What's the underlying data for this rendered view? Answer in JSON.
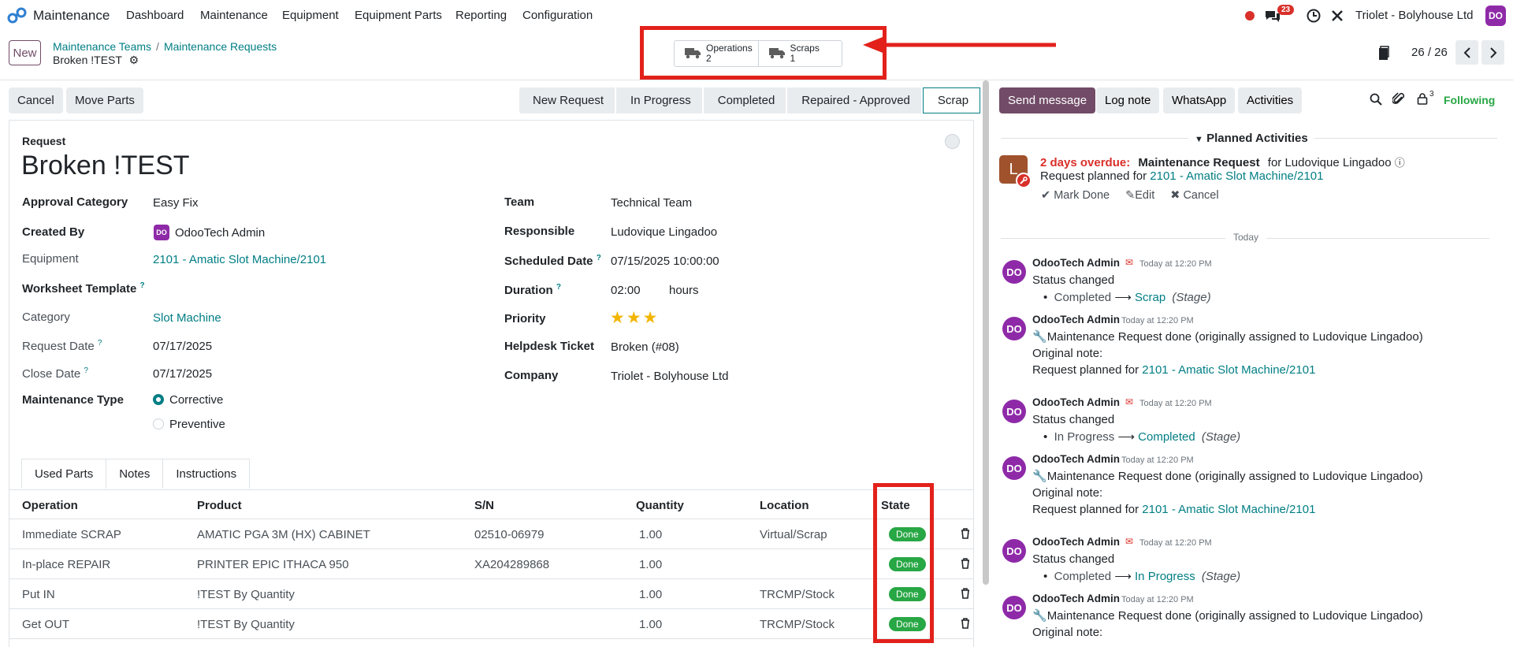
{
  "nav": {
    "app_name": "Maintenance",
    "menu": [
      "Dashboard",
      "Maintenance",
      "Equipment",
      "Equipment Parts",
      "Reporting",
      "Configuration"
    ],
    "messages_count": "23",
    "company": "Triolet - Bolyhouse Ltd",
    "user_initials": "DO"
  },
  "control": {
    "new_label": "New",
    "breadcrumb": [
      "Maintenance Teams",
      "Maintenance Requests"
    ],
    "record_title": "Broken !TEST",
    "smart_buttons": [
      {
        "label": "Operations",
        "count": "2"
      },
      {
        "label": "Scraps",
        "count": "1"
      }
    ],
    "pager": "26 / 26"
  },
  "actions": {
    "cancel": "Cancel",
    "move_parts": "Move Parts",
    "stages": [
      "New Request",
      "In Progress",
      "Completed",
      "Repaired - Approved",
      "Scrap"
    ],
    "active_stage": "Scrap"
  },
  "form": {
    "request_label": "Request",
    "title": "Broken !TEST",
    "left": {
      "approval_category_label": "Approval Category",
      "approval_category": "Easy Fix",
      "created_by_label": "Created By",
      "created_by": "OdooTech Admin",
      "equipment_label": "Equipment",
      "equipment": "2101 - Amatic Slot Machine/2101",
      "worksheet_label": "Worksheet Template",
      "category_label": "Category",
      "category": "Slot Machine",
      "request_date_label": "Request Date",
      "request_date": "07/17/2025",
      "close_date_label": "Close Date",
      "close_date": "07/17/2025",
      "maint_type_label": "Maintenance Type",
      "maint_type_options": [
        "Corrective",
        "Preventive"
      ],
      "maint_type_selected": "Corrective"
    },
    "right": {
      "team_label": "Team",
      "team": "Technical Team",
      "responsible_label": "Responsible",
      "responsible": "Ludovique Lingadoo",
      "scheduled_label": "Scheduled Date",
      "scheduled": "07/15/2025 10:00:00",
      "duration_label": "Duration",
      "duration": "02:00",
      "duration_unit": "hours",
      "priority_label": "Priority",
      "priority_stars": 3,
      "helpdesk_label": "Helpdesk Ticket",
      "helpdesk": "Broken (#08)",
      "company_label": "Company",
      "company": "Triolet - Bolyhouse Ltd"
    },
    "tabs": [
      "Used Parts",
      "Notes",
      "Instructions"
    ],
    "table": {
      "headers": [
        "Operation",
        "Product",
        "S/N",
        "Quantity",
        "Location",
        "State"
      ],
      "rows": [
        {
          "operation": "Immediate SCRAP",
          "product": "AMATIC PGA 3M (HX) CABINET",
          "sn": "02510-06979",
          "qty": "1.00",
          "location": "Virtual/Scrap",
          "state": "Done"
        },
        {
          "operation": "In-place REPAIR",
          "product": "PRINTER EPIC ITHACA 950",
          "sn": "XA204289868",
          "qty": "1.00",
          "location": "",
          "state": "Done"
        },
        {
          "operation": "Put IN",
          "product": "!TEST By Quantity",
          "sn": "",
          "qty": "1.00",
          "location": "TRCMP/Stock",
          "state": "Done"
        },
        {
          "operation": "Get OUT",
          "product": "!TEST By Quantity",
          "sn": "",
          "qty": "1.00",
          "location": "TRCMP/Stock",
          "state": "Done"
        }
      ]
    }
  },
  "chatter": {
    "send_message": "Send message",
    "log_note": "Log note",
    "whatsapp": "WhatsApp",
    "activities": "Activities",
    "followers_count": "3",
    "following": "Following",
    "planned_title": "Planned Activities",
    "activity": {
      "avatar_letter": "L",
      "overdue": "2 days overdue:",
      "type": "Maintenance Request",
      "for": "for Ludovique Lingadoo",
      "planned_for_text": "Request planned for",
      "planned_for_link": "2101 - Amatic Slot Machine/2101",
      "mark_done": "Mark Done",
      "edit": "Edit",
      "cancel": "Cancel"
    },
    "today": "Today",
    "messages": [
      {
        "author": "OdooTech Admin",
        "time": "Today at 12:20 PM",
        "lines": [
          "Status changed"
        ],
        "change_from": "Completed",
        "change_to": "Scrap",
        "change_field": "(Stage)"
      },
      {
        "author": "OdooTech Admin",
        "time": "Today at 12:20 PM",
        "lines": [
          "Maintenance Request done (originally assigned to Ludovique Lingadoo)",
          "Original note:"
        ],
        "planned_text": "Request planned for",
        "planned_link": "2101 - Amatic Slot Machine/2101"
      },
      {
        "author": "OdooTech Admin",
        "time": "Today at 12:20 PM",
        "lines": [
          "Status changed"
        ],
        "change_from": "In Progress",
        "change_to": "Completed",
        "change_field": "(Stage)"
      },
      {
        "author": "OdooTech Admin",
        "time": "Today at 12:20 PM",
        "lines": [
          "Maintenance Request done (originally assigned to Ludovique Lingadoo)",
          "Original note:"
        ],
        "planned_text": "Request planned for",
        "planned_link": "2101 - Amatic Slot Machine/2101"
      },
      {
        "author": "OdooTech Admin",
        "time": "Today at 12:20 PM",
        "lines": [
          "Status changed"
        ],
        "change_from": "Completed",
        "change_to": "In Progress",
        "change_field": "(Stage)"
      },
      {
        "author": "OdooTech Admin",
        "time": "Today at 12:20 PM",
        "lines": [
          "Maintenance Request done (originally assigned to Ludovique Lingadoo)",
          "Original note:"
        ]
      }
    ]
  },
  "colors": {
    "brand": "#714b67",
    "link": "#017e84",
    "annotation_red": "#e3211b",
    "done_green": "#28a745",
    "overdue_red": "#d9302a"
  }
}
